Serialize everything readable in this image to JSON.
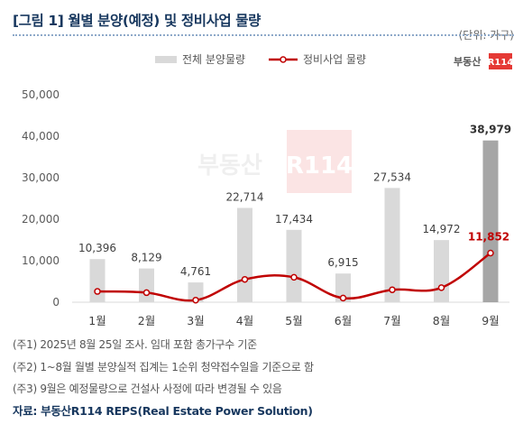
{
  "title": "[그림 1] 월별 분양(예정) 및 정비사업 물량",
  "unit": "(단위: 가구)",
  "watermark": "부동산R114",
  "logo": {
    "text": "부동산",
    "badge": "R114"
  },
  "colors": {
    "bar": "#d9d9d9",
    "bar_highlight": "#a6a6a6",
    "line": "#c00000",
    "title": "#17375e"
  },
  "chart_data": {
    "type": "bar+line",
    "categories": [
      "1월",
      "2월",
      "3월",
      "4월",
      "5월",
      "6월",
      "7월",
      "8월",
      "9월"
    ],
    "series": [
      {
        "name": "전체 분양물량",
        "type": "bar",
        "values": [
          10396,
          8129,
          4761,
          22714,
          17434,
          6915,
          27534,
          14972,
          38979
        ],
        "labels": [
          "10,396",
          "8,129",
          "4,761",
          "22,714",
          "17,434",
          "6,915",
          "27,534",
          "14,972",
          "38,979"
        ]
      },
      {
        "name": "정비사업 물량",
        "type": "line",
        "values": [
          2600,
          2300,
          500,
          5500,
          6000,
          1000,
          3000,
          3500,
          11852
        ],
        "labels": [
          "11,852"
        ]
      }
    ],
    "y_ticks": [
      "0",
      "10,000",
      "20,000",
      "30,000",
      "40,000",
      "50,000"
    ],
    "ylim": [
      0,
      50000
    ],
    "legend_position": "top-center",
    "grid": false
  },
  "footnotes": [
    "(주1) 2025년 8월 25일 조사. 임대 포함 총가구수 기준",
    "(주2) 1~8월 월별 분양실적 집계는 1순위 청약접수일을 기준으로 함",
    "(주3) 9월은 예정물량으로 건설사 사정에 따라 변경될 수 있음"
  ],
  "source": "자료: 부동산R114 REPS(Real Estate Power Solution)"
}
